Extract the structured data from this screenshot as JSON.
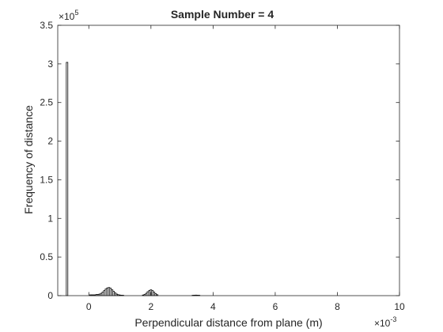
{
  "chart_data": {
    "type": "bar",
    "title": "Sample Number = 4",
    "xlabel": "Perpendicular distance from plane (m)",
    "ylabel": "Frequency of distance",
    "x_exponent_label": "×10",
    "x_exponent_power": "-3",
    "y_exponent_label": "×10",
    "y_exponent_power": "5",
    "xlim": [
      -1.0,
      10.0
    ],
    "ylim": [
      0,
      350000
    ],
    "x_ticks": [
      0,
      2,
      4,
      6,
      8,
      10
    ],
    "x_tick_labels": [
      "0",
      "2",
      "4",
      "6",
      "8",
      "10"
    ],
    "y_ticks": [
      0,
      50000,
      100000,
      150000,
      200000,
      250000,
      300000,
      350000
    ],
    "y_tick_labels": [
      "0",
      "0.5",
      "1",
      "1.5",
      "2",
      "2.5",
      "3",
      "3.5"
    ],
    "x_scale_factor": 0.001,
    "y_scale_factor": 100000,
    "bar_width": 0.05,
    "grid": false,
    "bars": [
      {
        "x": -0.7,
        "y": 302000
      },
      {
        "x": 0.05,
        "y": 1000
      },
      {
        "x": 0.1,
        "y": 1000
      },
      {
        "x": 0.15,
        "y": 1000
      },
      {
        "x": 0.2,
        "y": 1000
      },
      {
        "x": 0.25,
        "y": 1500
      },
      {
        "x": 0.3,
        "y": 1500
      },
      {
        "x": 0.35,
        "y": 2000
      },
      {
        "x": 0.4,
        "y": 3000
      },
      {
        "x": 0.45,
        "y": 4500
      },
      {
        "x": 0.5,
        "y": 6500
      },
      {
        "x": 0.55,
        "y": 8500
      },
      {
        "x": 0.6,
        "y": 10000
      },
      {
        "x": 0.65,
        "y": 10500
      },
      {
        "x": 0.7,
        "y": 9500
      },
      {
        "x": 0.75,
        "y": 7500
      },
      {
        "x": 0.8,
        "y": 5500
      },
      {
        "x": 0.85,
        "y": 3500
      },
      {
        "x": 0.9,
        "y": 2000
      },
      {
        "x": 0.95,
        "y": 1200
      },
      {
        "x": 1.0,
        "y": 800
      },
      {
        "x": 1.05,
        "y": 600
      },
      {
        "x": 1.1,
        "y": 500
      },
      {
        "x": 1.75,
        "y": 800
      },
      {
        "x": 1.8,
        "y": 1500
      },
      {
        "x": 1.85,
        "y": 3000
      },
      {
        "x": 1.9,
        "y": 5000
      },
      {
        "x": 1.95,
        "y": 6500
      },
      {
        "x": 2.0,
        "y": 7500
      },
      {
        "x": 2.05,
        "y": 6500
      },
      {
        "x": 2.1,
        "y": 4500
      },
      {
        "x": 2.15,
        "y": 2500
      },
      {
        "x": 2.2,
        "y": 1200
      },
      {
        "x": 3.35,
        "y": 500
      },
      {
        "x": 3.4,
        "y": 600
      },
      {
        "x": 3.45,
        "y": 700
      },
      {
        "x": 3.5,
        "y": 600
      },
      {
        "x": 3.55,
        "y": 500
      }
    ]
  }
}
